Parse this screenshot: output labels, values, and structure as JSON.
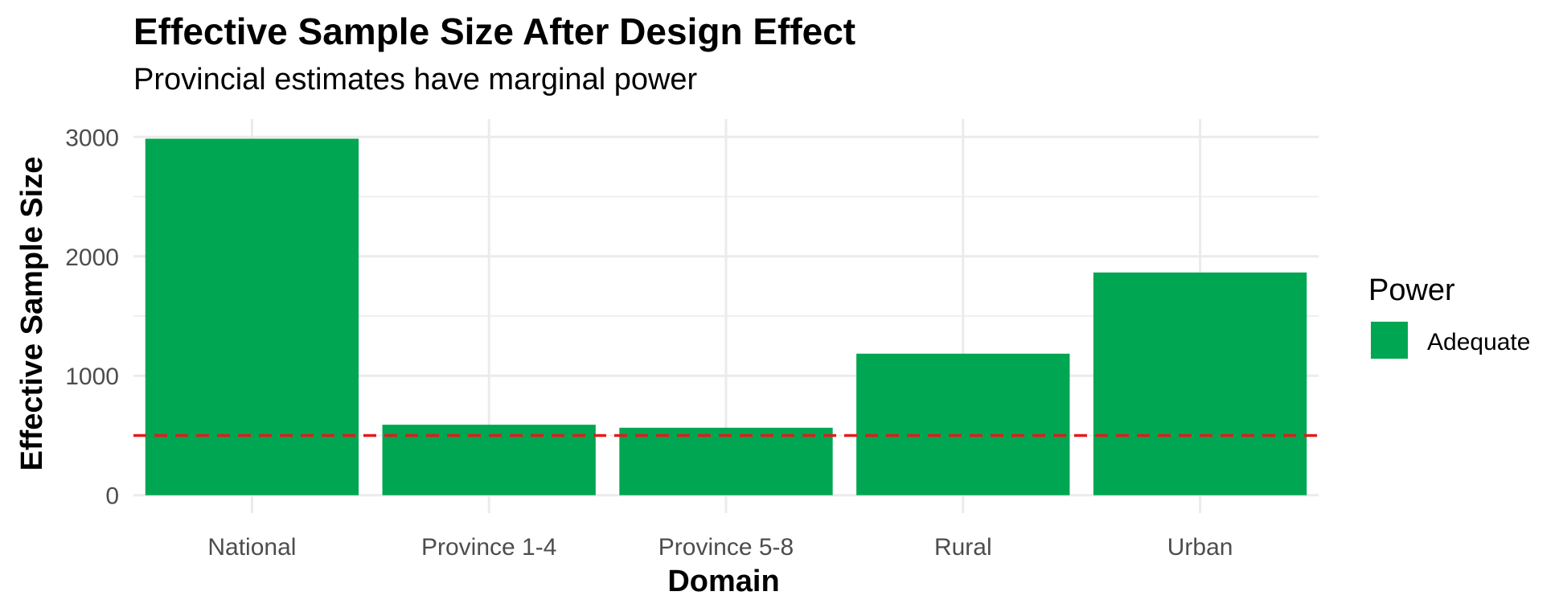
{
  "chart_data": {
    "type": "bar",
    "title": "Effective Sample Size After Design Effect",
    "subtitle": "Provincial estimates have marginal power",
    "xlabel": "Domain",
    "ylabel": "Effective Sample Size",
    "categories": [
      "National",
      "Province 1-4",
      "Province 5-8",
      "Rural",
      "Urban"
    ],
    "values": [
      2985,
      590,
      565,
      1185,
      1865
    ],
    "ylim": [
      -150,
      3150
    ],
    "yticks": [
      0,
      1000,
      2000,
      3000
    ],
    "reference_line": {
      "value": 500,
      "style": "dashed",
      "color": "#e41a1c"
    },
    "grid": true,
    "legend": {
      "title": "Power",
      "position": "right",
      "entries": [
        {
          "label": "Adequate",
          "color": "#00a651"
        }
      ]
    },
    "bar_color": "#00a651"
  }
}
